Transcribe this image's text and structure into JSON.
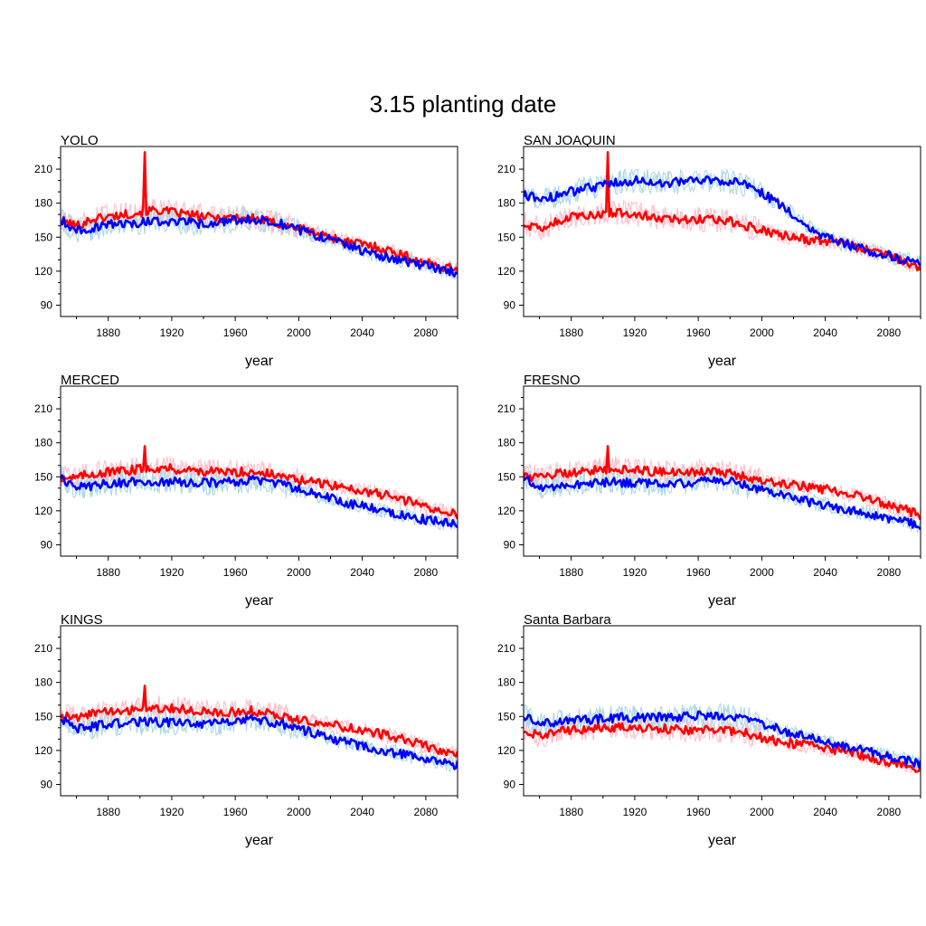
{
  "figure": {
    "title": "3.15 planting date"
  },
  "colors": {
    "red_mean": "#ff0000",
    "red_members": "#ffc0cb",
    "blue_mean": "#0000ff",
    "blue_members": "#add8e6"
  },
  "chart_data": [
    {
      "type": "line",
      "title": "YOLO",
      "xlabel": "year",
      "ylabel": "",
      "xlim": [
        1850,
        2100
      ],
      "ylim": [
        80,
        230
      ],
      "xticks": [
        1880,
        1920,
        1960,
        2000,
        2040,
        2080
      ],
      "yticks": [
        90,
        120,
        150,
        180,
        210
      ],
      "x": [
        1850,
        1860,
        1870,
        1880,
        1890,
        1900,
        1910,
        1920,
        1930,
        1940,
        1950,
        1960,
        1970,
        1980,
        1990,
        2000,
        2010,
        2020,
        2030,
        2040,
        2050,
        2060,
        2070,
        2080,
        2090,
        2100
      ],
      "series": [
        {
          "color": "red",
          "values": [
            165,
            160,
            166,
            168,
            170,
            172,
            174,
            172,
            170,
            168,
            167,
            168,
            167,
            164,
            161,
            158,
            154,
            150,
            146,
            144,
            141,
            137,
            132,
            127,
            124,
            122
          ]
        },
        {
          "color": "blue",
          "values": [
            165,
            156,
            158,
            161,
            162,
            163,
            164,
            164,
            163,
            162,
            163,
            165,
            166,
            165,
            161,
            156,
            152,
            148,
            143,
            138,
            134,
            131,
            128,
            125,
            121,
            119
          ]
        }
      ],
      "spikes": [
        {
          "x": 1903,
          "value": 225,
          "color": "red"
        }
      ]
    },
    {
      "type": "line",
      "title": "SAN JOAQUIN",
      "xlabel": "year",
      "ylabel": "",
      "xlim": [
        1850,
        2100
      ],
      "ylim": [
        80,
        230
      ],
      "xticks": [
        1880,
        1920,
        1960,
        2000,
        2040,
        2080
      ],
      "yticks": [
        90,
        120,
        150,
        180,
        210
      ],
      "x": [
        1850,
        1860,
        1870,
        1880,
        1890,
        1900,
        1910,
        1920,
        1930,
        1940,
        1950,
        1960,
        1970,
        1980,
        1990,
        2000,
        2010,
        2020,
        2030,
        2040,
        2050,
        2060,
        2070,
        2080,
        2090,
        2100
      ],
      "series": [
        {
          "color": "red",
          "values": [
            162,
            158,
            163,
            168,
            170,
            171,
            172,
            170,
            168,
            167,
            166,
            166,
            165,
            164,
            160,
            156,
            152,
            150,
            147,
            146,
            144,
            141,
            137,
            133,
            128,
            123
          ]
        },
        {
          "color": "blue",
          "values": [
            187,
            184,
            186,
            190,
            193,
            196,
            199,
            200,
            199,
            198,
            199,
            200,
            201,
            199,
            196,
            189,
            180,
            170,
            158,
            150,
            145,
            141,
            137,
            134,
            130,
            127
          ]
        }
      ],
      "spikes": [
        {
          "x": 1903,
          "value": 225,
          "color": "red"
        }
      ]
    },
    {
      "type": "line",
      "title": "MERCED",
      "xlabel": "year",
      "ylabel": "",
      "xlim": [
        1850,
        2100
      ],
      "ylim": [
        80,
        230
      ],
      "xticks": [
        1880,
        1920,
        1960,
        2000,
        2040,
        2080
      ],
      "yticks": [
        90,
        120,
        150,
        180,
        210
      ],
      "x": [
        1850,
        1860,
        1870,
        1880,
        1890,
        1900,
        1910,
        1920,
        1930,
        1940,
        1950,
        1960,
        1970,
        1980,
        1990,
        2000,
        2010,
        2020,
        2030,
        2040,
        2050,
        2060,
        2070,
        2080,
        2090,
        2100
      ],
      "series": [
        {
          "color": "red",
          "values": [
            150,
            149,
            153,
            154,
            155,
            157,
            158,
            157,
            156,
            155,
            154,
            154,
            155,
            153,
            150,
            147,
            145,
            143,
            140,
            138,
            135,
            132,
            128,
            124,
            120,
            116
          ]
        },
        {
          "color": "blue",
          "values": [
            150,
            140,
            142,
            144,
            145,
            146,
            146,
            146,
            145,
            145,
            145,
            146,
            147,
            146,
            143,
            139,
            135,
            131,
            127,
            124,
            121,
            118,
            115,
            112,
            110,
            108
          ]
        }
      ],
      "spikes": [
        {
          "x": 1903,
          "value": 177,
          "color": "red"
        }
      ]
    },
    {
      "type": "line",
      "title": "FRESNO",
      "xlabel": "year",
      "ylabel": "",
      "xlim": [
        1850,
        2100
      ],
      "ylim": [
        80,
        230
      ],
      "xticks": [
        1880,
        1920,
        1960,
        2000,
        2040,
        2080
      ],
      "yticks": [
        90,
        120,
        150,
        180,
        210
      ],
      "x": [
        1850,
        1860,
        1870,
        1880,
        1890,
        1900,
        1910,
        1920,
        1930,
        1940,
        1950,
        1960,
        1970,
        1980,
        1990,
        2000,
        2010,
        2020,
        2030,
        2040,
        2050,
        2060,
        2070,
        2080,
        2090,
        2100
      ],
      "series": [
        {
          "color": "red",
          "values": [
            150,
            150,
            153,
            154,
            155,
            157,
            157,
            156,
            155,
            154,
            154,
            154,
            155,
            153,
            150,
            147,
            145,
            143,
            141,
            139,
            136,
            133,
            129,
            125,
            121,
            116
          ]
        },
        {
          "color": "blue",
          "values": [
            148,
            140,
            142,
            143,
            144,
            145,
            145,
            145,
            144,
            144,
            144,
            146,
            147,
            146,
            143,
            139,
            136,
            132,
            128,
            125,
            122,
            119,
            116,
            113,
            110,
            107
          ]
        }
      ],
      "spikes": [
        {
          "x": 1903,
          "value": 177,
          "color": "red"
        }
      ]
    },
    {
      "type": "line",
      "title": "KINGS",
      "xlabel": "year",
      "ylabel": "",
      "xlim": [
        1850,
        2100
      ],
      "ylim": [
        80,
        230
      ],
      "xticks": [
        1880,
        1920,
        1960,
        2000,
        2040,
        2080
      ],
      "yticks": [
        90,
        120,
        150,
        180,
        210
      ],
      "x": [
        1850,
        1860,
        1870,
        1880,
        1890,
        1900,
        1910,
        1920,
        1930,
        1940,
        1950,
        1960,
        1970,
        1980,
        1990,
        2000,
        2010,
        2020,
        2030,
        2040,
        2050,
        2060,
        2070,
        2080,
        2090,
        2100
      ],
      "series": [
        {
          "color": "red",
          "values": [
            150,
            149,
            153,
            154,
            155,
            157,
            158,
            157,
            156,
            155,
            154,
            154,
            155,
            153,
            150,
            147,
            145,
            143,
            140,
            138,
            135,
            132,
            128,
            124,
            120,
            116
          ]
        },
        {
          "color": "blue",
          "values": [
            148,
            139,
            141,
            143,
            144,
            145,
            145,
            145,
            144,
            144,
            144,
            146,
            147,
            146,
            143,
            139,
            135,
            131,
            127,
            124,
            121,
            118,
            115,
            112,
            109,
            107
          ]
        }
      ],
      "spikes": [
        {
          "x": 1903,
          "value": 177,
          "color": "red"
        }
      ]
    },
    {
      "type": "line",
      "title": "Santa Barbara",
      "xlabel": "year",
      "ylabel": "",
      "xlim": [
        1850,
        2100
      ],
      "ylim": [
        80,
        230
      ],
      "xticks": [
        1880,
        1920,
        1960,
        2000,
        2040,
        2080
      ],
      "yticks": [
        90,
        120,
        150,
        180,
        210
      ],
      "x": [
        1850,
        1860,
        1870,
        1880,
        1890,
        1900,
        1910,
        1920,
        1930,
        1940,
        1950,
        1960,
        1970,
        1980,
        1990,
        2000,
        2010,
        2020,
        2030,
        2040,
        2050,
        2060,
        2070,
        2080,
        2090,
        2100
      ],
      "series": [
        {
          "color": "red",
          "values": [
            137,
            133,
            136,
            138,
            139,
            140,
            140,
            140,
            139,
            139,
            138,
            138,
            138,
            137,
            135,
            131,
            128,
            126,
            124,
            122,
            120,
            117,
            113,
            110,
            107,
            104
          ]
        },
        {
          "color": "blue",
          "values": [
            150,
            143,
            145,
            146,
            147,
            148,
            149,
            149,
            149,
            149,
            150,
            151,
            151,
            150,
            148,
            144,
            139,
            135,
            131,
            127,
            124,
            121,
            118,
            115,
            111,
            108
          ]
        }
      ],
      "spikes": []
    }
  ]
}
